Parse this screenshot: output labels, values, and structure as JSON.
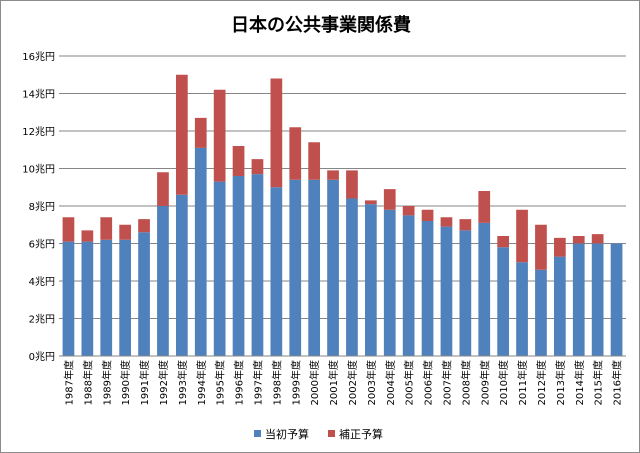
{
  "chart_data": {
    "type": "bar",
    "stacked": true,
    "title": "日本の公共事業関係費",
    "xlabel": "",
    "ylabel": "",
    "ylim": [
      0,
      16
    ],
    "y_ticks": [
      "0兆円",
      "2兆円",
      "4兆円",
      "6兆円",
      "8兆円",
      "10兆円",
      "12兆円",
      "14兆円",
      "16兆円"
    ],
    "grid": true,
    "legend_position": "bottom",
    "categories": [
      "1987年度",
      "1988年度",
      "1989年度",
      "1990年度",
      "1991年度",
      "1992年度",
      "1993年度",
      "1994年度",
      "1995年度",
      "1996年度",
      "1997年度",
      "1998年度",
      "1999年度",
      "2000年度",
      "2001年度",
      "2002年度",
      "2003年度",
      "2004年度",
      "2005年度",
      "2006年度",
      "2007年度",
      "2008年度",
      "2009年度",
      "2010年度",
      "2011年度",
      "2012年度",
      "2013年度",
      "2014年度",
      "2015年度",
      "2016年度"
    ],
    "series": [
      {
        "name": "当初予算",
        "color": "#4f81bd",
        "values": [
          6.1,
          6.1,
          6.2,
          6.2,
          6.6,
          8.0,
          8.6,
          11.1,
          9.3,
          9.6,
          9.7,
          9.0,
          9.4,
          9.4,
          9.4,
          8.4,
          8.1,
          7.8,
          7.5,
          7.2,
          6.9,
          6.7,
          7.1,
          5.8,
          5.0,
          4.6,
          5.3,
          6.0,
          6.0,
          6.0
        ]
      },
      {
        "name": "補正予算",
        "color": "#c0504d",
        "values": [
          1.3,
          0.6,
          1.2,
          0.8,
          0.7,
          1.8,
          6.4,
          1.6,
          4.9,
          1.6,
          0.8,
          5.8,
          2.8,
          2.0,
          0.5,
          1.5,
          0.2,
          1.1,
          0.5,
          0.6,
          0.5,
          0.6,
          1.7,
          0.6,
          2.8,
          2.4,
          1.0,
          0.4,
          0.5,
          0.0
        ]
      }
    ]
  }
}
